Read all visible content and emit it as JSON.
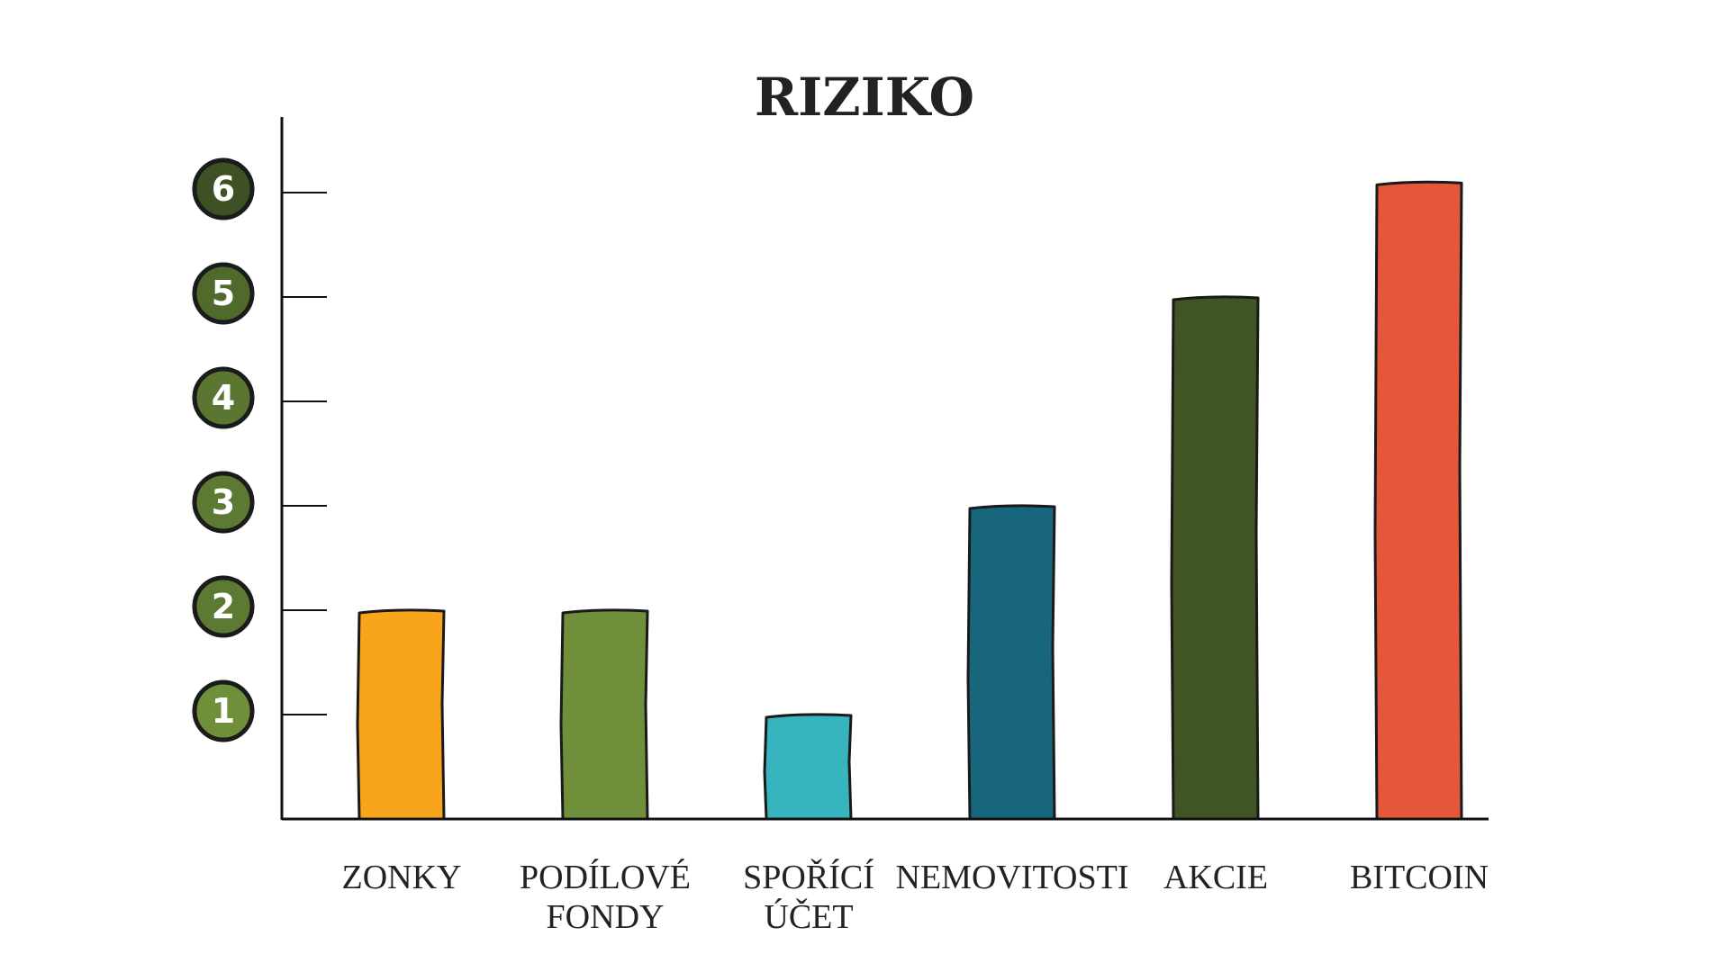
{
  "chart_data": {
    "type": "bar",
    "title": "RIZIKO",
    "categories": [
      [
        "ZONKY"
      ],
      [
        "PODÍLOVÉ",
        "FONDY"
      ],
      [
        "SPOŘÍCÍ",
        "ÚČET"
      ],
      [
        "NEMOVITOSTI"
      ],
      [
        "AKCIE"
      ],
      [
        "BITCOIN"
      ]
    ],
    "values": [
      2,
      2,
      1,
      3,
      5,
      6.1
    ],
    "bar_colors": [
      "#f9a51c",
      "#6f8f3b",
      "#38b4bf",
      "#17667b",
      "#415424",
      "#e5573a"
    ],
    "ylim": [
      0,
      6
    ],
    "yticks": [
      1,
      2,
      3,
      4,
      5,
      6
    ],
    "ytick_colors": [
      "#6f8f3b",
      "#5d7a33",
      "#5d7a33",
      "#5a7630",
      "#4f6a2b",
      "#3e5124"
    ],
    "grid": false,
    "xlabel": "",
    "ylabel": ""
  }
}
